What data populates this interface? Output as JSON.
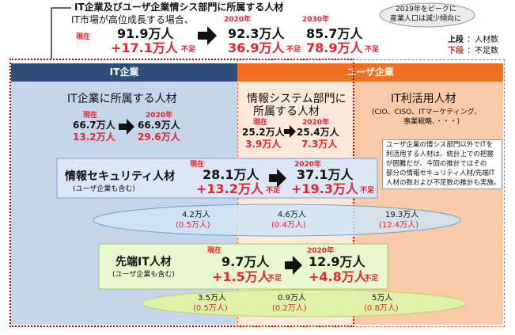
{
  "header": {
    "title": "IT企業及びユーザ企業情シス部門に所属する人材",
    "subtitle": "IT市場が高位成長する場合、",
    "now": {
      "label": "現在",
      "count": "91.9万人",
      "shortage": "+17.1万人",
      "suffix": "不足"
    },
    "y2020": {
      "label": "2020年",
      "count": "92.3万人",
      "shortage": "36.9万人",
      "suffix": "不足"
    },
    "y2030": {
      "label": "2030年",
      "count": "85.7万人",
      "shortage": "78.9万人",
      "suffix": "不足"
    }
  },
  "callout": {
    "lines": [
      "2019年をピークに",
      "産業人口は減少傾向に"
    ]
  },
  "legend": {
    "upper": "上段",
    "upper_desc": "：人材数",
    "lower": "下段",
    "lower_desc": "：不足数"
  },
  "sections": {
    "it_company": "IT企業",
    "user_company": "ユーザ企業"
  },
  "columns": [
    {
      "title": [
        "IT企業に所属する人材"
      ],
      "now": {
        "label": "現在",
        "count": "66.7万人",
        "shortage": "13.2万人"
      },
      "y2020": {
        "label": "2020年",
        "count": "66.9万人",
        "shortage": "29.6万人"
      }
    },
    {
      "title": [
        "情報システム部門に",
        "所属する人材"
      ],
      "now": {
        "label": "現在",
        "count": "25.2万人",
        "shortage": "3.9万人"
      },
      "y2020": {
        "label": "2020年",
        "count": "25.4万人",
        "shortage": "7.3万人"
      }
    },
    {
      "title": [
        "IT利活用人材"
      ],
      "detail": [
        "(CIO、CISO、ITマーケティング、",
        "事業戦略、・・・)"
      ]
    }
  ],
  "note": {
    "lines": [
      "ユーザ企業の情シス部門以外でITを",
      "利活用する人材は、統計上での把握",
      "が困難だが、今回の推計ではその",
      "部分の情報セキュリティ人材/先端IT",
      "人材の数および不足数の推計も実施。"
    ]
  },
  "security": {
    "title": "情報セキュリティ人材",
    "note": "(ユーザ企業も含む)",
    "now": {
      "label": "現在",
      "count": "28.1万人",
      "shortage": "+13.2万人",
      "suffix": "不足"
    },
    "y2020": {
      "label": "2020年",
      "count": "37.1万人",
      "shortage": "+19.3万人",
      "suffix": "不足"
    },
    "breakdown": [
      {
        "count": "4.2万人",
        "shortage": "(0.5万人)"
      },
      {
        "count": "4.6万人",
        "shortage": "(0.4万人)"
      },
      {
        "count": "19.3万人",
        "shortage": "(12.4万人)"
      }
    ]
  },
  "advanced": {
    "title": "先端IT人材",
    "note": "(ユーザ企業も含む)",
    "now": {
      "label": "現在",
      "count": "9.7万人",
      "shortage": "+1.5万人",
      "suffix": "不足"
    },
    "y2020": {
      "label": "2020年",
      "count": "12.9万人",
      "shortage": "+4.8万人",
      "suffix": "不足"
    },
    "breakdown": [
      {
        "count": "3.5万人",
        "shortage": "(0.5万人)"
      },
      {
        "count": "0.9万人",
        "shortage": "(0.2万人)"
      },
      {
        "count": "5万人",
        "shortage": "(0.8万人)"
      }
    ]
  }
}
